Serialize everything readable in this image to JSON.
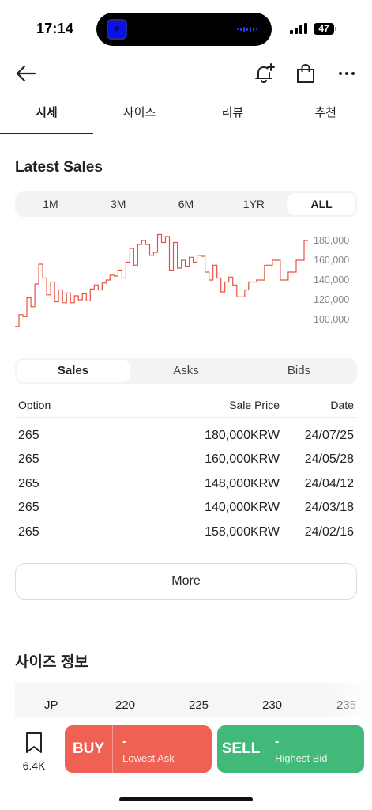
{
  "status_bar": {
    "time": "17:14",
    "battery": "47"
  },
  "nav": {
    "back_icon": "arrow-left-icon",
    "alert_icon": "bell-plus-icon",
    "bag_icon": "shopping-bag-icon",
    "more_icon": "ellipsis-icon"
  },
  "tabs": [
    {
      "label": "시세",
      "active": true
    },
    {
      "label": "사이즈",
      "active": false
    },
    {
      "label": "리뷰",
      "active": false
    },
    {
      "label": "추천",
      "active": false
    }
  ],
  "latest_sales": {
    "title": "Latest Sales",
    "periods": [
      {
        "label": "1M",
        "active": false
      },
      {
        "label": "3M",
        "active": false
      },
      {
        "label": "6M",
        "active": false
      },
      {
        "label": "1YR",
        "active": false
      },
      {
        "label": "ALL",
        "active": true
      }
    ]
  },
  "chart_data": {
    "type": "line",
    "title": "",
    "xlabel": "",
    "ylabel": "",
    "ylim": [
      92000,
      188000
    ],
    "y_ticks": [
      "180,000",
      "160,000",
      "140,000",
      "120,000",
      "100,000"
    ],
    "y_tick_values": [
      180000,
      160000,
      140000,
      120000,
      100000
    ],
    "color": "#e5533f",
    "series": [
      {
        "values": [
          93000,
          105000,
          103000,
          122000,
          113000,
          136000,
          156000,
          142000,
          125000,
          138000,
          118000,
          130000,
          117000,
          127000,
          117000,
          124000,
          120000,
          126000,
          119000,
          131000,
          135000,
          130000,
          137000,
          140000,
          145000,
          144000,
          150000,
          142000,
          158000,
          172000,
          155000,
          176000,
          180000,
          176000,
          165000,
          168000,
          186000,
          178000,
          184000,
          150000,
          178000,
          152000,
          160000,
          154000,
          163000,
          158000,
          165000,
          164000,
          148000,
          140000,
          155000,
          142000,
          128000,
          138000,
          143000,
          135000,
          123000,
          123000,
          130000,
          138000,
          138000,
          140000,
          140000,
          155000,
          155000,
          160000,
          160000,
          140000,
          140000,
          148000,
          148000,
          160000,
          160000,
          180000,
          180000
        ]
      }
    ]
  },
  "sales_table": {
    "subtabs": [
      {
        "label": "Sales",
        "active": true
      },
      {
        "label": "Asks",
        "active": false
      },
      {
        "label": "Bids",
        "active": false
      }
    ],
    "headers": {
      "option": "Option",
      "price": "Sale Price",
      "date": "Date"
    },
    "rows": [
      {
        "option": "265",
        "price": "180,000KRW",
        "date": "24/07/25"
      },
      {
        "option": "265",
        "price": "160,000KRW",
        "date": "24/05/28"
      },
      {
        "option": "265",
        "price": "148,000KRW",
        "date": "24/04/12"
      },
      {
        "option": "265",
        "price": "140,000KRW",
        "date": "24/03/18"
      },
      {
        "option": "265",
        "price": "158,000KRW",
        "date": "24/02/16"
      }
    ],
    "more_label": "More"
  },
  "size_info": {
    "title": "사이즈 정보",
    "row_label": "JP",
    "sizes": [
      "220",
      "225",
      "230",
      "235"
    ]
  },
  "bottom_bar": {
    "bookmark_icon": "bookmark-icon",
    "bookmark_count": "6.4K",
    "buy": {
      "label": "BUY",
      "value": "-",
      "sub": "Lowest Ask",
      "color": "#ef6253"
    },
    "sell": {
      "label": "SELL",
      "value": "-",
      "sub": "Highest Bid",
      "color": "#41b979"
    }
  }
}
